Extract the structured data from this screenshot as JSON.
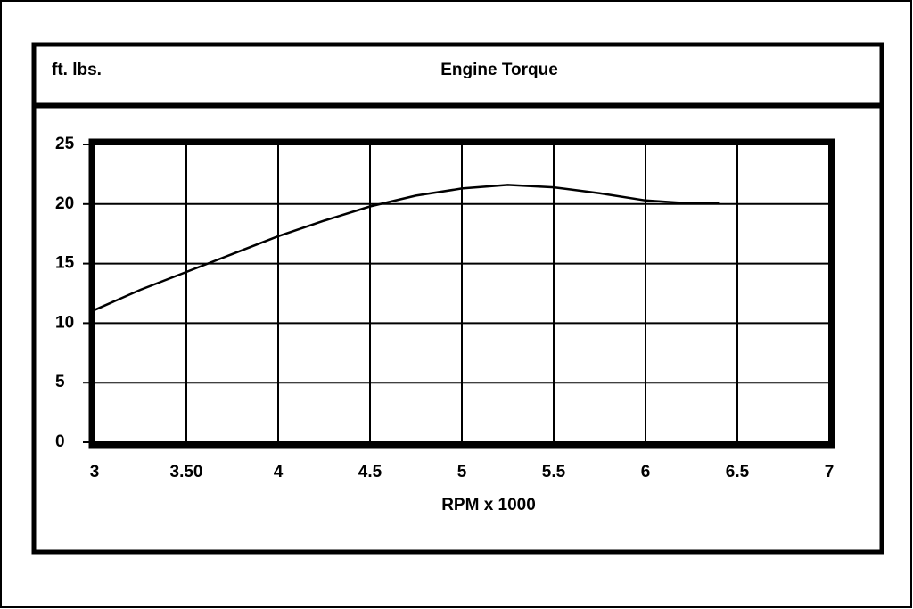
{
  "chart_data": {
    "type": "line",
    "title": "Engine Torque",
    "ylabel": "ft. lbs.",
    "xlabel": "RPM x 1000",
    "x": [
      3,
      3.25,
      3.5,
      3.75,
      4,
      4.25,
      4.5,
      4.75,
      5,
      5.25,
      5.5,
      5.75,
      6,
      6.2,
      6.4
    ],
    "values": [
      11.1,
      12.8,
      14.3,
      15.8,
      17.3,
      18.6,
      19.8,
      20.7,
      21.3,
      21.6,
      21.4,
      20.9,
      20.3,
      20.1,
      20.1
    ],
    "color": "#000000",
    "xlim": [
      3,
      7
    ],
    "xticks": [
      3,
      {
        "value": 3.5,
        "label": "3.50"
      },
      4,
      4.5,
      5,
      5.5,
      6,
      6.5,
      7
    ],
    "ylim": [
      0,
      25
    ],
    "yticks": [
      0,
      5,
      10,
      15,
      20,
      25
    ],
    "grid": true
  }
}
